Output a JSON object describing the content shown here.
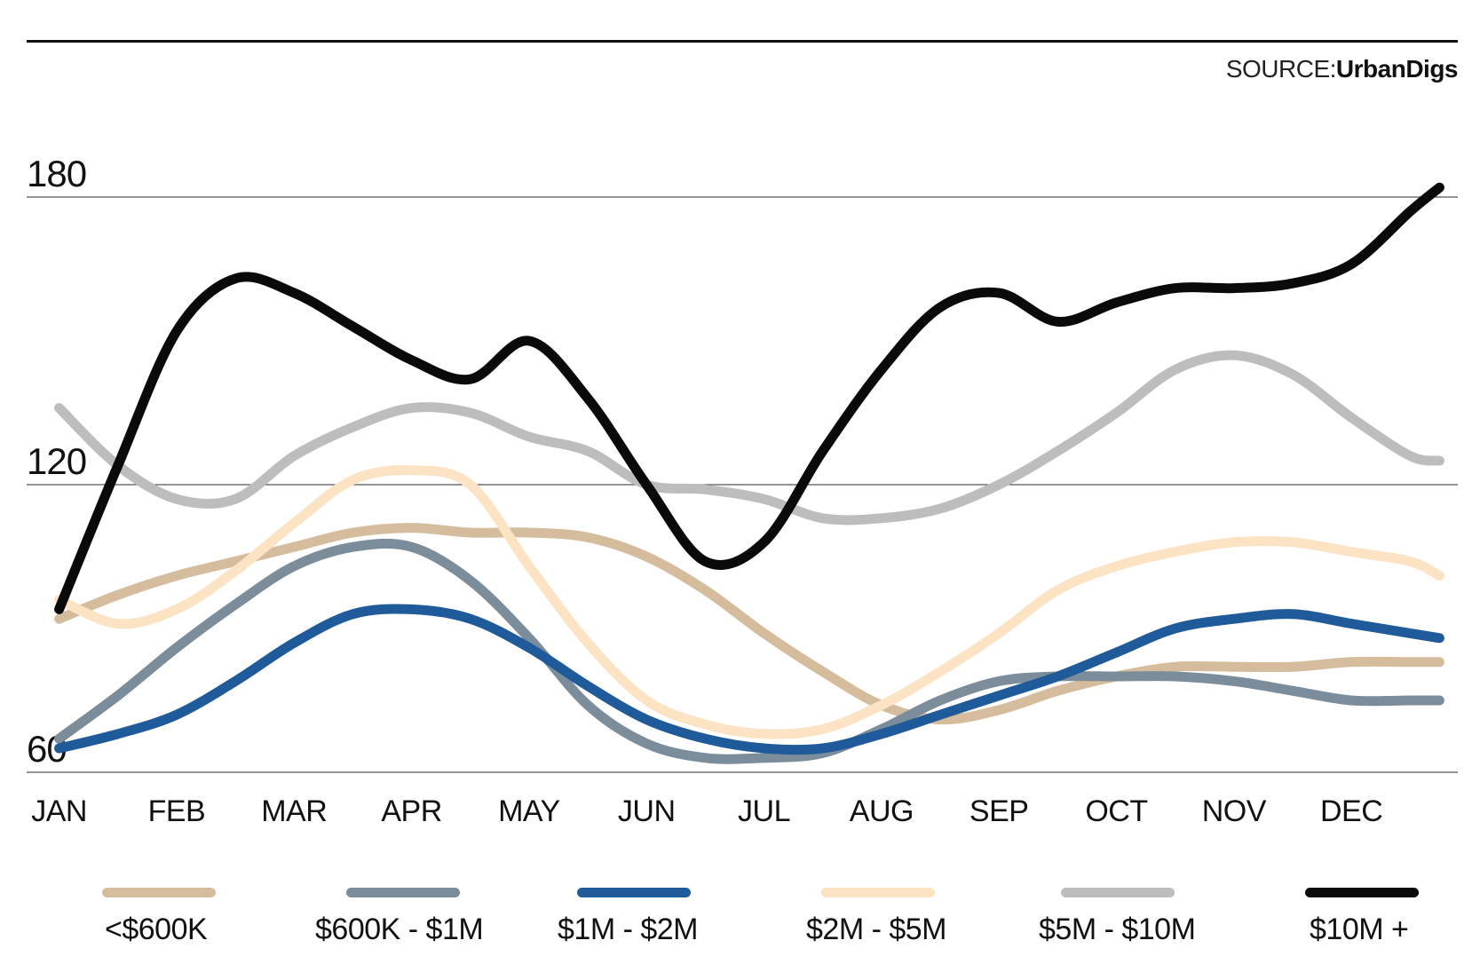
{
  "source": {
    "label": "SOURCE:",
    "name": "UrbanDigs"
  },
  "chart_data": {
    "type": "line",
    "title": "",
    "xlabel": "",
    "ylabel": "",
    "ylim": [
      57,
      188
    ],
    "yticks": [
      60,
      120,
      180
    ],
    "grid": "horizontal",
    "legend": "bottom",
    "categories": [
      "JAN",
      "FEB",
      "MAR",
      "APR",
      "MAY",
      "JUN",
      "JUL",
      "AUG",
      "SEP",
      "OCT",
      "NOV",
      "DEC"
    ],
    "x_range": [
      0.45,
      12.3
    ],
    "x": [
      0.5,
      1.0,
      1.5,
      2.0,
      2.5,
      3.0,
      3.5,
      4.0,
      4.5,
      5.0,
      5.5,
      6.0,
      6.5,
      7.0,
      7.5,
      8.0,
      8.5,
      9.0,
      9.5,
      10.0,
      10.5,
      11.0,
      11.5,
      12.0,
      12.25
    ],
    "series": [
      {
        "name": "<$600K",
        "color": "#d4bc9c",
        "values": [
          92,
          97,
          101,
          104,
          107,
          110,
          111,
          110,
          110,
          109,
          105,
          98,
          89,
          81,
          74,
          71,
          73,
          77,
          80,
          82,
          82,
          82,
          83,
          83,
          83
        ]
      },
      {
        "name": "$600K - $1M",
        "color": "#7b8c9b",
        "values": [
          67,
          76,
          86,
          95,
          103,
          107,
          107,
          100,
          88,
          74,
          66,
          63,
          63,
          64,
          69,
          75,
          79,
          80,
          80,
          80,
          79,
          77,
          75,
          75,
          75
        ]
      },
      {
        "name": "$1M - $2M",
        "color": "#1f5a9a",
        "values": [
          65,
          68,
          72,
          79,
          87,
          93,
          94,
          92,
          86,
          78,
          71,
          67,
          65,
          65,
          68,
          72,
          76,
          80,
          85,
          90,
          92,
          93,
          91,
          89,
          88
        ]
      },
      {
        "name": "$2M - $5M",
        "color": "#fbe3c4",
        "values": [
          96,
          91,
          94,
          102,
          112,
          121,
          123,
          120,
          103,
          87,
          75,
          70,
          68,
          69,
          74,
          81,
          89,
          98,
          103,
          106,
          108,
          108,
          106,
          104,
          101
        ]
      },
      {
        "name": "$5M - $10M",
        "color": "#bdbdbd",
        "values": [
          136,
          124,
          117,
          117,
          126,
          132,
          136,
          135,
          130,
          127,
          120,
          119,
          117,
          113,
          113,
          115,
          120,
          127,
          135,
          144,
          147,
          143,
          134,
          126,
          125
        ]
      },
      {
        "name": "$10M +",
        "color": "#0a0a0a",
        "values": [
          94,
          124,
          152,
          163,
          160,
          153,
          146,
          142,
          150,
          138,
          120,
          104,
          108,
          127,
          144,
          157,
          160,
          154,
          158,
          161,
          161,
          162,
          166,
          177,
          182
        ]
      }
    ]
  }
}
